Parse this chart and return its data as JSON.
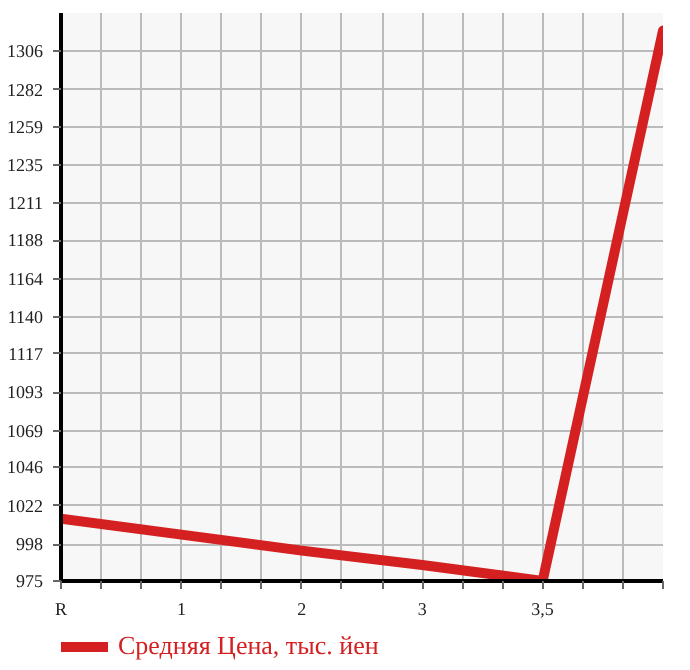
{
  "chart_data": {
    "type": "line",
    "categories": [
      "R",
      "1",
      "2",
      "3",
      "3,5",
      null
    ],
    "series": [
      {
        "name": "Средняя Цена, тыс. йен",
        "color": "#d42020",
        "values": [
          1014,
          1004,
          994,
          985,
          975,
          1319
        ]
      }
    ],
    "ylim": [
      975,
      1330
    ],
    "yticks": [
      975,
      998,
      1022,
      1046,
      1069,
      1093,
      1117,
      1140,
      1164,
      1188,
      1211,
      1235,
      1259,
      1282,
      1306
    ],
    "grid": true,
    "legend": "bottom",
    "marker": "none",
    "line_style": "solid"
  }
}
